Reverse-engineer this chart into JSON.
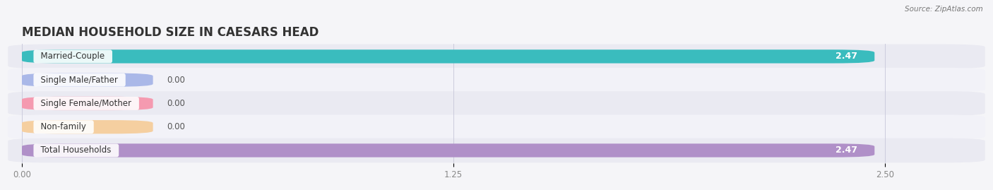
{
  "title": "MEDIAN HOUSEHOLD SIZE IN CAESARS HEAD",
  "source": "Source: ZipAtlas.com",
  "categories": [
    "Married-Couple",
    "Single Male/Father",
    "Single Female/Mother",
    "Non-family",
    "Total Households"
  ],
  "values": [
    2.47,
    0.0,
    0.0,
    0.0,
    2.47
  ],
  "bar_colors": [
    "#3abcbe",
    "#aab8e8",
    "#f59ab0",
    "#f5cfa0",
    "#b090c8"
  ],
  "xlim": [
    0,
    2.75
  ],
  "xticks": [
    0.0,
    1.25,
    2.5
  ],
  "xtick_labels": [
    "0.00",
    "1.25",
    "2.50"
  ],
  "title_fontsize": 12,
  "label_fontsize": 8.5,
  "value_fontsize": 9,
  "bar_height": 0.58,
  "background_color": "#f5f5f8",
  "row_colors": [
    "#eaeaf2",
    "#f2f2f8"
  ]
}
